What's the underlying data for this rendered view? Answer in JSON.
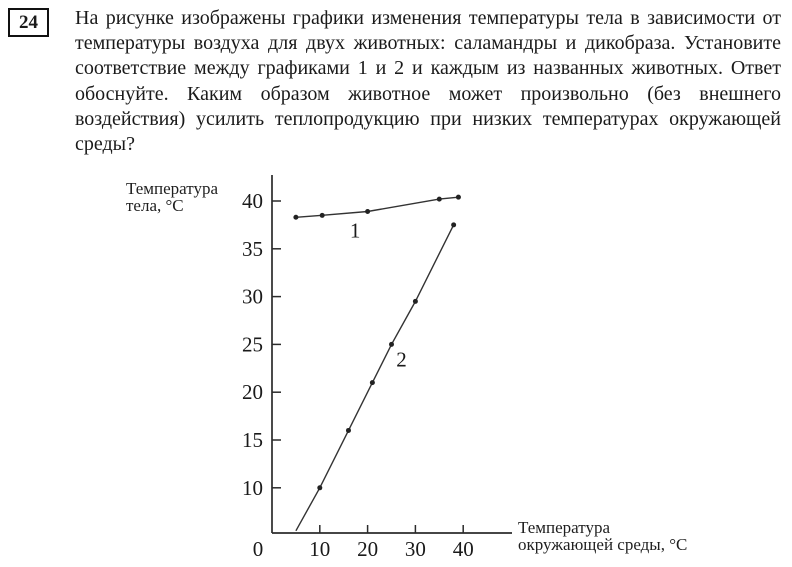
{
  "question": {
    "number": "24",
    "text": "На рисунке изображены графики изменения температуры тела в зависимости от температуры воздуха для двух животных: саламандры и дикобраза. Установите соответствие между графиками 1 и 2 и каждым из названных животных. Ответ обоснуйте. Каким образом животное может произвольно (без внешнего воздействия) усилить теплопродукцию при низких температурах окружающей среды?"
  },
  "chart_data": {
    "type": "line",
    "title": "",
    "xlabel": "Температура окружающей среды, °C",
    "ylabel": "Температура тела, °C",
    "xlabel_lines": [
      "Температура",
      "окружающей среды, °C"
    ],
    "ylabel_lines": [
      "Температура",
      "тела, °C"
    ],
    "xlim": [
      0,
      50
    ],
    "ylim": [
      5,
      43
    ],
    "x_ticks": [
      0,
      10,
      20,
      30,
      40
    ],
    "y_ticks": [
      10,
      15,
      20,
      25,
      30,
      35,
      40
    ],
    "grid": false,
    "legend_position": "none",
    "axis_color": "#2b2b2b",
    "line_color": "#333333",
    "series": [
      {
        "name": "1",
        "label": "1",
        "points": [
          [
            5,
            38.3
          ],
          [
            10.5,
            38.5
          ],
          [
            20,
            38.9
          ],
          [
            35,
            40.2
          ],
          [
            39,
            40.4
          ]
        ],
        "marker": "dot",
        "marker_start_index": 0,
        "label_pos": [
          17.4,
          36.2
        ]
      },
      {
        "name": "2",
        "label": "2",
        "points": [
          [
            5,
            5.5
          ],
          [
            10,
            10
          ],
          [
            16,
            16
          ],
          [
            21,
            21
          ],
          [
            25,
            25
          ],
          [
            30,
            29.5
          ],
          [
            38,
            37.5
          ]
        ],
        "marker": "dot",
        "marker_start_index": 1,
        "label_pos": [
          27.1,
          22.7
        ]
      }
    ]
  }
}
